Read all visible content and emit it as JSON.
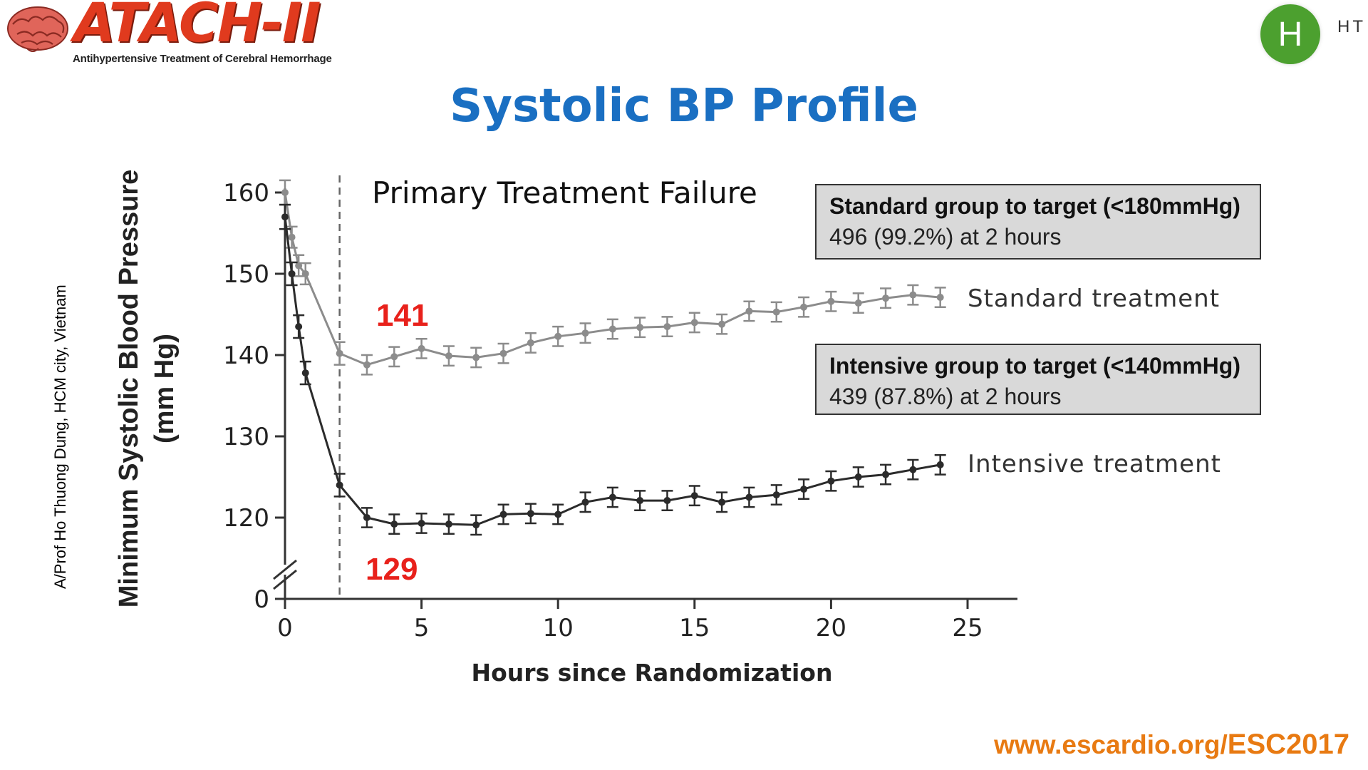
{
  "logo": {
    "title": "ATACH-II",
    "subtitle": "Antihypertensive Treatment of Cerebral Hemorrhage"
  },
  "badge": {
    "letter": "H",
    "text": "HT",
    "color": "#4ca02f"
  },
  "slide": {
    "title": "Systolic BP Profile",
    "credit": "A/Prof Ho Thuong Dung, HCM city, Vietnam",
    "footer_prefix": "www.escardio.org/",
    "footer_bold": "ESC2017"
  },
  "boxes": {
    "standard": {
      "line1": "Standard group to target (<180mmHg)",
      "line2": "496 (99.2%) at 2 hours"
    },
    "intensive": {
      "line1": "Intensive group to target (<140mmHg)",
      "line2": "439 (87.8%) at 2 hours"
    }
  },
  "chart_data": {
    "type": "line",
    "title": "",
    "annotation": "Primary Treatment Failure",
    "xlabel": "Hours since Randomization",
    "ylabel": "Minimum Systolic Blood Pressure",
    "ylabel_unit": "(mm Hg)",
    "xlim": [
      0,
      25
    ],
    "ylim": [
      115,
      160
    ],
    "y_axis_break": true,
    "x_ticks": [
      0,
      5,
      10,
      15,
      20,
      25
    ],
    "y_ticks": [
      0,
      120,
      130,
      140,
      150,
      160
    ],
    "vertical_marker_x": 2,
    "grid": false,
    "legend": "inline-right",
    "callouts": {
      "standard_value": "141",
      "intensive_value": "129",
      "color": "#e8211b"
    },
    "series": [
      {
        "name": "Standard treatment",
        "color": "#8c8c8c",
        "x": [
          0,
          0.25,
          0.5,
          0.75,
          2,
          3,
          4,
          5,
          6,
          7,
          8,
          9,
          10,
          11,
          12,
          13,
          14,
          15,
          16,
          17,
          18,
          19,
          20,
          21,
          22,
          23,
          24
        ],
        "y": [
          160,
          154.5,
          151,
          150,
          140.2,
          138.8,
          139.8,
          140.8,
          139.9,
          139.7,
          140.2,
          141.5,
          142.3,
          142.7,
          143.2,
          143.4,
          143.5,
          144,
          143.8,
          145.4,
          145.3,
          145.9,
          146.6,
          146.4,
          147,
          147.4,
          147.1
        ],
        "err": [
          1.5,
          1.3,
          1.3,
          1.3,
          1.4,
          1.2,
          1.2,
          1.2,
          1.2,
          1.2,
          1.2,
          1.2,
          1.2,
          1.2,
          1.2,
          1.2,
          1.2,
          1.2,
          1.2,
          1.2,
          1.2,
          1.2,
          1.2,
          1.2,
          1.2,
          1.2,
          1.2
        ]
      },
      {
        "name": "Intensive treatment",
        "color": "#2b2b2b",
        "x": [
          0,
          0.25,
          0.5,
          0.75,
          2,
          3,
          4,
          5,
          6,
          7,
          8,
          9,
          10,
          11,
          12,
          13,
          14,
          15,
          16,
          17,
          18,
          19,
          20,
          21,
          22,
          23,
          24
        ],
        "y": [
          157,
          150,
          143.5,
          137.8,
          124,
          120,
          119.2,
          119.3,
          119.2,
          119.1,
          120.4,
          120.5,
          120.4,
          121.9,
          122.5,
          122.1,
          122.1,
          122.7,
          121.9,
          122.5,
          122.8,
          123.5,
          124.5,
          125,
          125.3,
          125.9,
          126.5
        ],
        "err": [
          1.5,
          1.4,
          1.4,
          1.4,
          1.4,
          1.2,
          1.2,
          1.2,
          1.2,
          1.2,
          1.2,
          1.2,
          1.2,
          1.2,
          1.2,
          1.2,
          1.2,
          1.2,
          1.2,
          1.2,
          1.2,
          1.2,
          1.2,
          1.2,
          1.2,
          1.2,
          1.2
        ]
      }
    ]
  }
}
